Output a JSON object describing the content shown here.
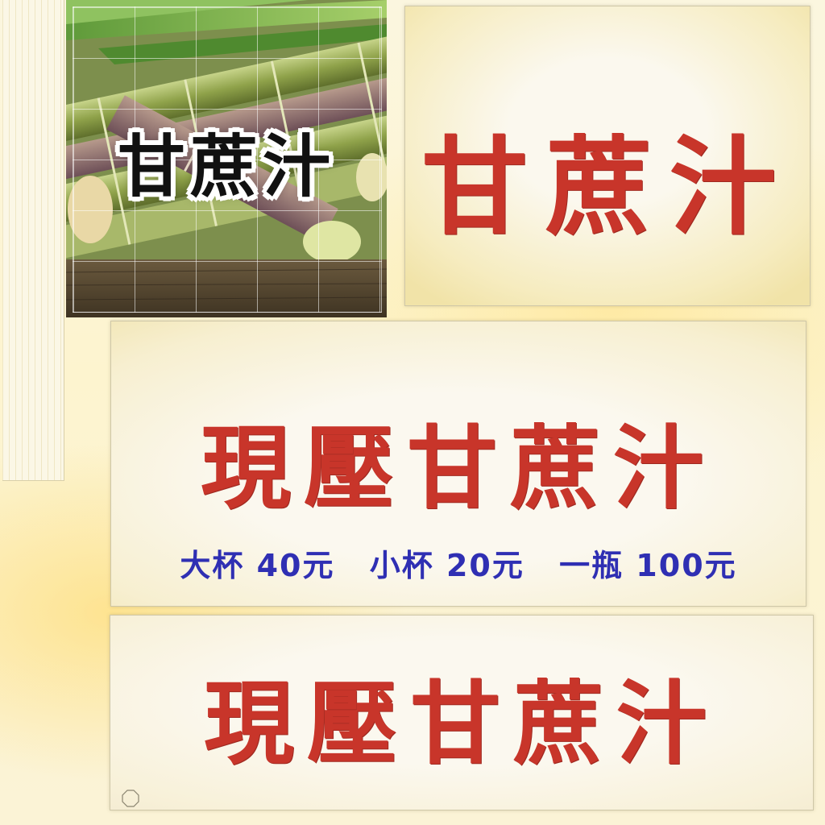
{
  "photo": {
    "title": "甘蔗汁"
  },
  "card_a": {
    "title": "甘蔗汁"
  },
  "card_b": {
    "title": "現壓甘蔗汁",
    "prices": [
      "大杯 40元",
      "小杯 20元",
      "一瓶 100元"
    ]
  },
  "card_c": {
    "title": "現壓甘蔗汁"
  },
  "colors": {
    "title_red": "#c8352a",
    "price_blue": "#2f2fb3",
    "background_cream": "#fbf6df",
    "highlight_yellow": "#ffd65a"
  },
  "icons": {
    "corner": "octagon-outline-icon"
  }
}
